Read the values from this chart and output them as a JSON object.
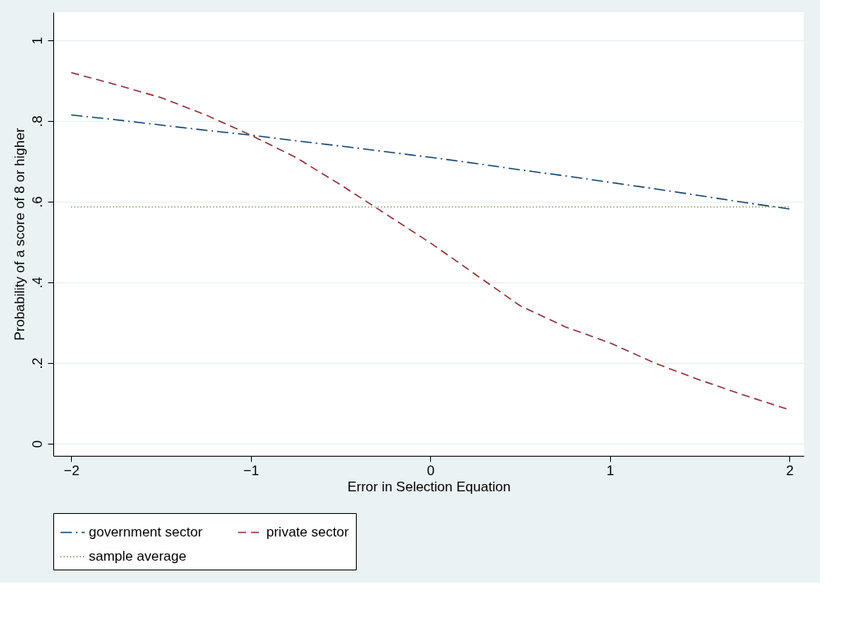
{
  "chart_data": {
    "type": "line",
    "xlabel": "Error in Selection Equation",
    "ylabel": "Probability of a score of 8 or higher",
    "x": [
      -2,
      -1.75,
      -1.5,
      -1.25,
      -1,
      -0.75,
      -0.5,
      -0.25,
      0,
      0.25,
      0.5,
      0.75,
      1,
      1.25,
      1.5,
      1.75,
      2
    ],
    "series": [
      {
        "name": "government sector",
        "color": "#1a476f",
        "line_style": "dashdot",
        "values": [
          0.815,
          0.803,
          0.79,
          0.777,
          0.765,
          0.751,
          0.738,
          0.724,
          0.71,
          0.695,
          0.679,
          0.664,
          0.648,
          0.632,
          0.615,
          0.598,
          0.582
        ]
      },
      {
        "name": "private sector",
        "color": "#90353b",
        "line_style": "dashed",
        "values": [
          0.92,
          0.89,
          0.858,
          0.815,
          0.765,
          0.71,
          0.642,
          0.57,
          0.498,
          0.42,
          0.342,
          0.29,
          0.25,
          0.2,
          0.158,
          0.12,
          0.084
        ]
      },
      {
        "name": "sample average",
        "color": "#55752f",
        "line_style": "dotted",
        "values": [
          0.587,
          0.587,
          0.587,
          0.587,
          0.587,
          0.587,
          0.587,
          0.587,
          0.587,
          0.587,
          0.587,
          0.587,
          0.587,
          0.587,
          0.587,
          0.587,
          0.587
        ]
      }
    ],
    "xlim": [
      -2.1,
      2.08
    ],
    "ylim": [
      -0.03,
      1.07
    ],
    "xticks": [
      {
        "value": -2,
        "label": "−2"
      },
      {
        "value": -1,
        "label": "−1"
      },
      0,
      1,
      2
    ],
    "yticks": [
      0,
      {
        "value": 0.2,
        "label": ".2"
      },
      {
        "value": 0.4,
        "label": ".4"
      },
      {
        "value": 0.6,
        "label": ".6"
      },
      {
        "value": 0.8,
        "label": ".8"
      },
      1
    ],
    "grid": "y",
    "legend": "bottom",
    "marker": "none"
  }
}
